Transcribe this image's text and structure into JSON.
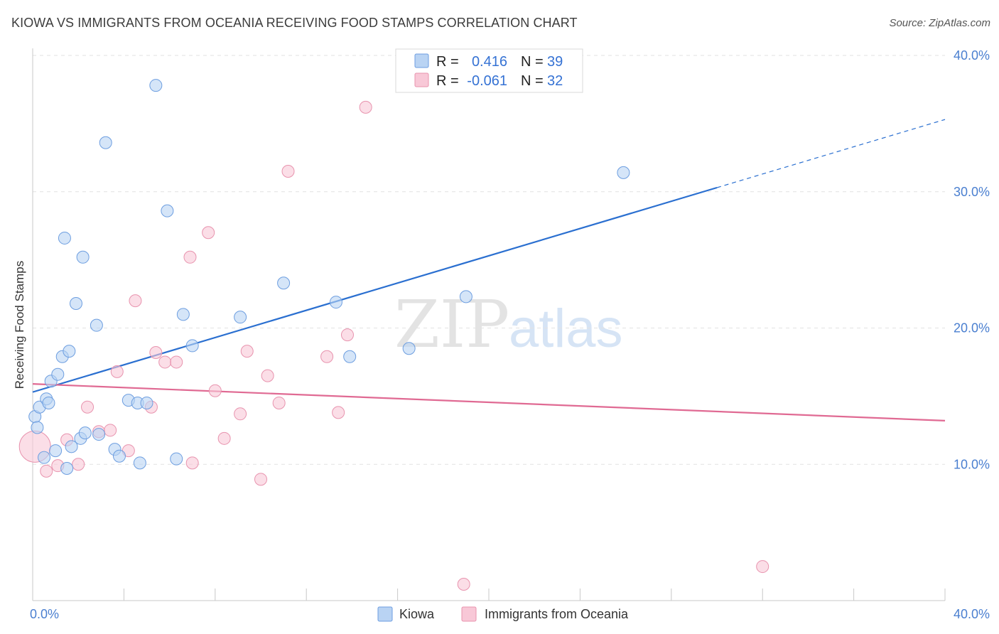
{
  "title": "KIOWA VS IMMIGRANTS FROM OCEANIA RECEIVING FOOD STAMPS CORRELATION CHART",
  "source": "Source: ZipAtlas.com",
  "watermark": {
    "zip": "ZIP",
    "atlas": "atlas"
  },
  "colors": {
    "kiowa_fill": "#b9d3f3",
    "kiowa_stroke": "#6d9ee0",
    "kiowa_line": "#2a6fd0",
    "oceania_fill": "#f8c8d7",
    "oceania_stroke": "#e893ae",
    "oceania_line": "#e06a93",
    "grid": "#e2e2e2",
    "axis_text": "#4a7fd0"
  },
  "legend": {
    "rows": [
      {
        "r_label": "R =",
        "r_value": "0.416",
        "n_label": "N =",
        "n_value": "39"
      },
      {
        "r_label": "R =",
        "r_value": "-0.061",
        "n_label": "N =",
        "n_value": "32"
      }
    ]
  },
  "chart_data": {
    "type": "scatter",
    "title": "KIOWA VS IMMIGRANTS FROM OCEANIA RECEIVING FOOD STAMPS CORRELATION CHART",
    "xlabel": "",
    "ylabel": "Receiving Food Stamps",
    "xlim": [
      0,
      40
    ],
    "ylim": [
      0,
      40
    ],
    "x_tick_labels": [
      "0.0%",
      "40.0%"
    ],
    "y_ticks": [
      10,
      20,
      30,
      40
    ],
    "y_tick_labels": [
      "10.0%",
      "20.0%",
      "30.0%",
      "40.0%"
    ],
    "grid": true,
    "legend_position": "top-center",
    "series": [
      {
        "name": "Kiowa",
        "r": 0.416,
        "n": 39,
        "trend": {
          "x": [
            0,
            30.0
          ],
          "y": [
            15.3,
            30.3
          ],
          "dashed_to": [
            40,
            35.3
          ]
        },
        "points": [
          [
            0.1,
            13.5
          ],
          [
            0.2,
            12.7
          ],
          [
            0.3,
            14.2
          ],
          [
            0.5,
            10.5
          ],
          [
            0.6,
            14.8
          ],
          [
            0.7,
            14.5
          ],
          [
            0.8,
            16.1
          ],
          [
            1.0,
            11.0
          ],
          [
            1.1,
            16.6
          ],
          [
            1.3,
            17.9
          ],
          [
            1.4,
            26.6
          ],
          [
            1.5,
            9.7
          ],
          [
            1.6,
            18.3
          ],
          [
            1.7,
            11.3
          ],
          [
            1.9,
            21.8
          ],
          [
            2.1,
            11.9
          ],
          [
            2.2,
            25.2
          ],
          [
            2.3,
            12.3
          ],
          [
            2.8,
            20.2
          ],
          [
            2.9,
            12.2
          ],
          [
            3.2,
            33.6
          ],
          [
            3.6,
            11.1
          ],
          [
            3.8,
            10.6
          ],
          [
            4.2,
            14.7
          ],
          [
            4.6,
            14.5
          ],
          [
            4.7,
            10.1
          ],
          [
            5.0,
            14.5
          ],
          [
            5.4,
            37.8
          ],
          [
            5.9,
            28.6
          ],
          [
            6.3,
            10.4
          ],
          [
            6.6,
            21.0
          ],
          [
            7.0,
            18.7
          ],
          [
            9.1,
            20.8
          ],
          [
            11.0,
            23.3
          ],
          [
            13.3,
            21.9
          ],
          [
            13.9,
            17.9
          ],
          [
            16.5,
            18.5
          ],
          [
            19.0,
            22.3
          ],
          [
            25.9,
            31.4
          ]
        ]
      },
      {
        "name": "Immigrants from Oceania",
        "r": -0.061,
        "n": 32,
        "trend": {
          "x": [
            0,
            40
          ],
          "y": [
            15.9,
            13.2
          ]
        },
        "points": [
          [
            0.1,
            11.3
          ],
          [
            0.6,
            9.5
          ],
          [
            1.1,
            9.9
          ],
          [
            1.5,
            11.8
          ],
          [
            2.0,
            10.0
          ],
          [
            2.4,
            14.2
          ],
          [
            2.9,
            12.4
          ],
          [
            3.4,
            12.5
          ],
          [
            3.7,
            16.8
          ],
          [
            4.2,
            11.0
          ],
          [
            4.5,
            22.0
          ],
          [
            5.2,
            14.2
          ],
          [
            5.4,
            18.2
          ],
          [
            5.8,
            17.5
          ],
          [
            6.3,
            17.5
          ],
          [
            6.9,
            25.2
          ],
          [
            7.0,
            10.1
          ],
          [
            7.7,
            27.0
          ],
          [
            8.0,
            15.4
          ],
          [
            8.4,
            11.9
          ],
          [
            9.1,
            13.7
          ],
          [
            9.4,
            18.3
          ],
          [
            10.0,
            8.9
          ],
          [
            10.3,
            16.5
          ],
          [
            10.8,
            14.5
          ],
          [
            11.2,
            31.5
          ],
          [
            12.9,
            17.9
          ],
          [
            13.4,
            13.8
          ],
          [
            13.8,
            19.5
          ],
          [
            14.6,
            36.2
          ],
          [
            18.9,
            1.2
          ],
          [
            32.0,
            2.5
          ]
        ]
      }
    ]
  }
}
